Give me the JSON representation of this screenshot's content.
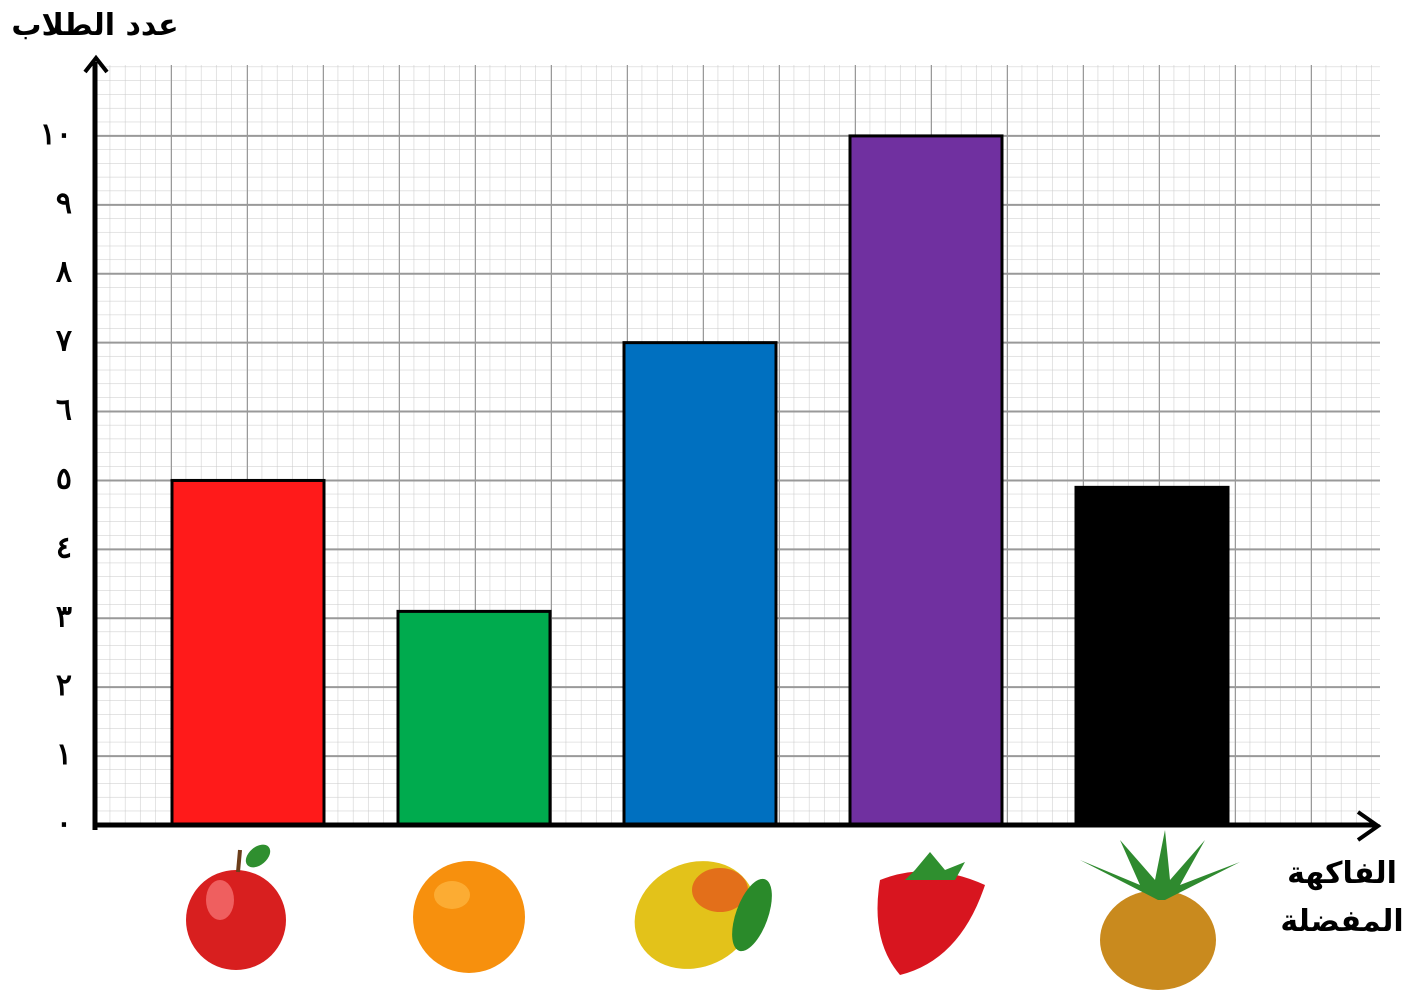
{
  "chart_data": {
    "type": "bar",
    "y_label": "عدد الطلاب",
    "x_label": "الفاكهة المفضلة",
    "categories": [
      null,
      null,
      null,
      null,
      null
    ],
    "values": [
      5,
      3.1,
      7,
      10,
      4.9
    ],
    "colors": [
      "#ff1a1a",
      "#00ab4e",
      "#0070c0",
      "#7030a0",
      "#000000"
    ],
    "ylim": [
      0,
      11
    ],
    "yticks": [
      {
        "value": 0,
        "label": "٠"
      },
      {
        "value": 1,
        "label": "١"
      },
      {
        "value": 2,
        "label": "٢"
      },
      {
        "value": 3,
        "label": "٣"
      },
      {
        "value": 4,
        "label": "٤"
      },
      {
        "value": 5,
        "label": "٥"
      },
      {
        "value": 6,
        "label": "٦"
      },
      {
        "value": 7,
        "label": "٧"
      },
      {
        "value": 8,
        "label": "٨"
      },
      {
        "value": 9,
        "label": "٩"
      },
      {
        "value": 10,
        "label": "١٠"
      }
    ],
    "grid": true
  }
}
